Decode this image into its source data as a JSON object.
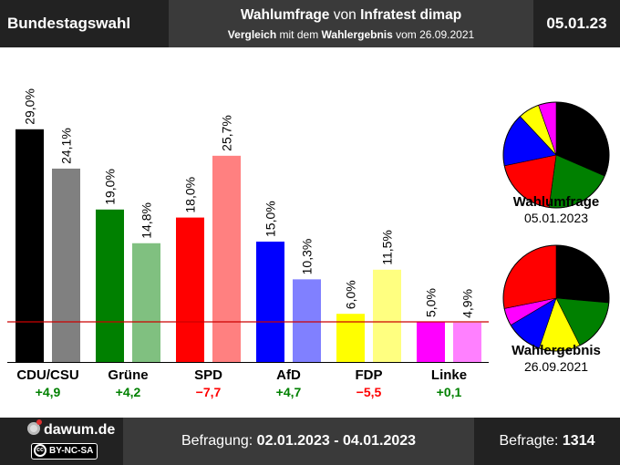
{
  "header": {
    "left_title": "Bundestagswahl",
    "title_bold": "Wahlumfrage",
    "title_mid": "von",
    "title_institute": "Infratest dimap",
    "subtitle_bold1": "Vergleich",
    "subtitle_mid": "mit dem",
    "subtitle_bold2": "Wahlergebnis",
    "subtitle_end": "vom 26.09.2021",
    "date": "05.01.23"
  },
  "chart_data": {
    "type": "bar",
    "categories": [
      "CDU/CSU",
      "Grüne",
      "SPD",
      "AfD",
      "FDP",
      "Linke"
    ],
    "series": [
      {
        "values": [
          29.0,
          19.0,
          18.0,
          15.0,
          6.0,
          5.0
        ]
      },
      {
        "values": [
          24.1,
          14.8,
          25.7,
          10.3,
          11.5,
          4.9
        ]
      }
    ],
    "value_labels_current": [
      "29,0%",
      "19,0%",
      "18,0%",
      "15,0%",
      "6,0%",
      "5,0%"
    ],
    "value_labels_previous": [
      "24,1%",
      "14,8%",
      "25,7%",
      "10,3%",
      "11,5%",
      "4,9%"
    ],
    "diff_labels": [
      "+4,9",
      "+4,2",
      "−7,7",
      "+4,7",
      "−5,5",
      "+0,1"
    ],
    "diff_colors": [
      "#008000",
      "#008000",
      "#ff0000",
      "#008000",
      "#ff0000",
      "#008000"
    ],
    "colors_current": [
      "#000000",
      "#008000",
      "#ff0000",
      "#0000ff",
      "#ffff00",
      "#ff00ff"
    ],
    "colors_previous": [
      "#808080",
      "#80c080",
      "#ff8080",
      "#8080ff",
      "#ffff80",
      "#ff80ff"
    ],
    "threshold": 5,
    "threshold_color": "#cc0000",
    "ylim": [
      0,
      30
    ],
    "pies": [
      {
        "label": "Wahlumfrage",
        "date": "05.01.2023",
        "order": [
          "CDU/CSU",
          "Grüne",
          "SPD",
          "AfD",
          "FDP",
          "Linke"
        ],
        "values": [
          29.0,
          19.0,
          18.0,
          15.0,
          6.0,
          5.0
        ],
        "colors": [
          "#000000",
          "#008000",
          "#ff0000",
          "#0000ff",
          "#ffff00",
          "#ff00ff"
        ]
      },
      {
        "label": "Wahlergebnis",
        "date": "26.09.2021",
        "order": [
          "CDU/CSU",
          "Grüne",
          "FDP",
          "AfD",
          "Linke",
          "SPD"
        ],
        "values": [
          24.1,
          14.8,
          11.5,
          10.3,
          4.9,
          25.7
        ],
        "colors": [
          "#000000",
          "#008000",
          "#ffff00",
          "#0000ff",
          "#ff00ff",
          "#ff0000"
        ]
      }
    ]
  },
  "footer": {
    "brand": "dawum.de",
    "license": "BY-NC-SA",
    "license_icon": "cc",
    "survey_label": "Befragung:",
    "survey_period": "02.01.2023 - 04.01.2023",
    "respondents_label": "Befragte:",
    "respondents": "1314"
  }
}
